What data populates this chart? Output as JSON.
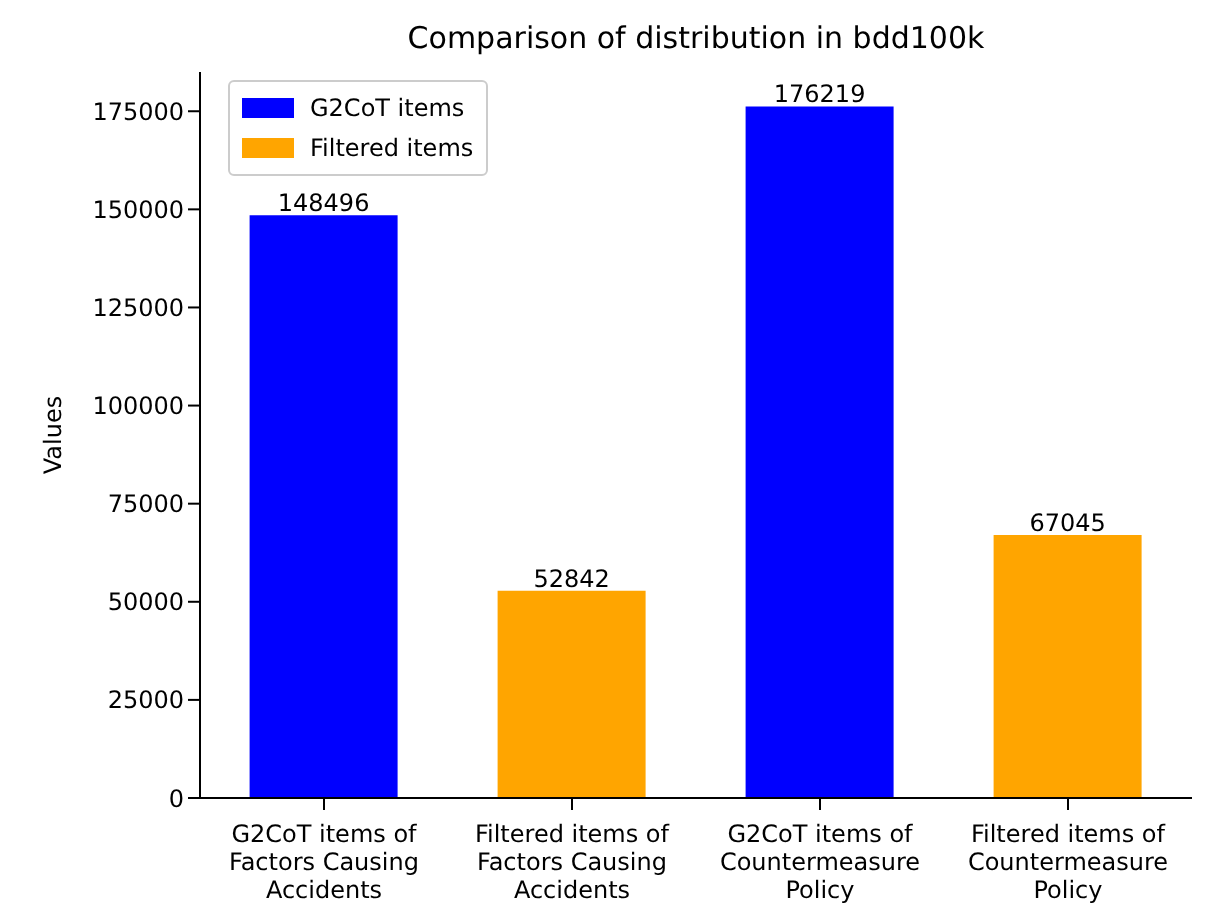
{
  "chart_data": {
    "type": "bar",
    "title": "Comparison of distribution in bdd100k",
    "ylabel": "Values",
    "categories": [
      "G2CoT items of Factors Causing Accidents",
      "Filtered items of Factors Causing Accidents",
      "G2CoT items of Countermeasure Policy",
      "Filtered items of Countermeasure Policy"
    ],
    "series": [
      {
        "name": "G2CoT items",
        "color": "#0000ff",
        "values": [
          148496,
          null,
          176219,
          null
        ]
      },
      {
        "name": "Filtered items",
        "color": "#ffa500",
        "values": [
          null,
          52842,
          null,
          67045
        ]
      }
    ],
    "stacked": true,
    "data_labels": true,
    "ylim": [
      0,
      185000
    ],
    "yticks": [
      0,
      25000,
      50000,
      75000,
      100000,
      125000,
      150000,
      175000
    ],
    "grid": false,
    "legend": "top left"
  }
}
